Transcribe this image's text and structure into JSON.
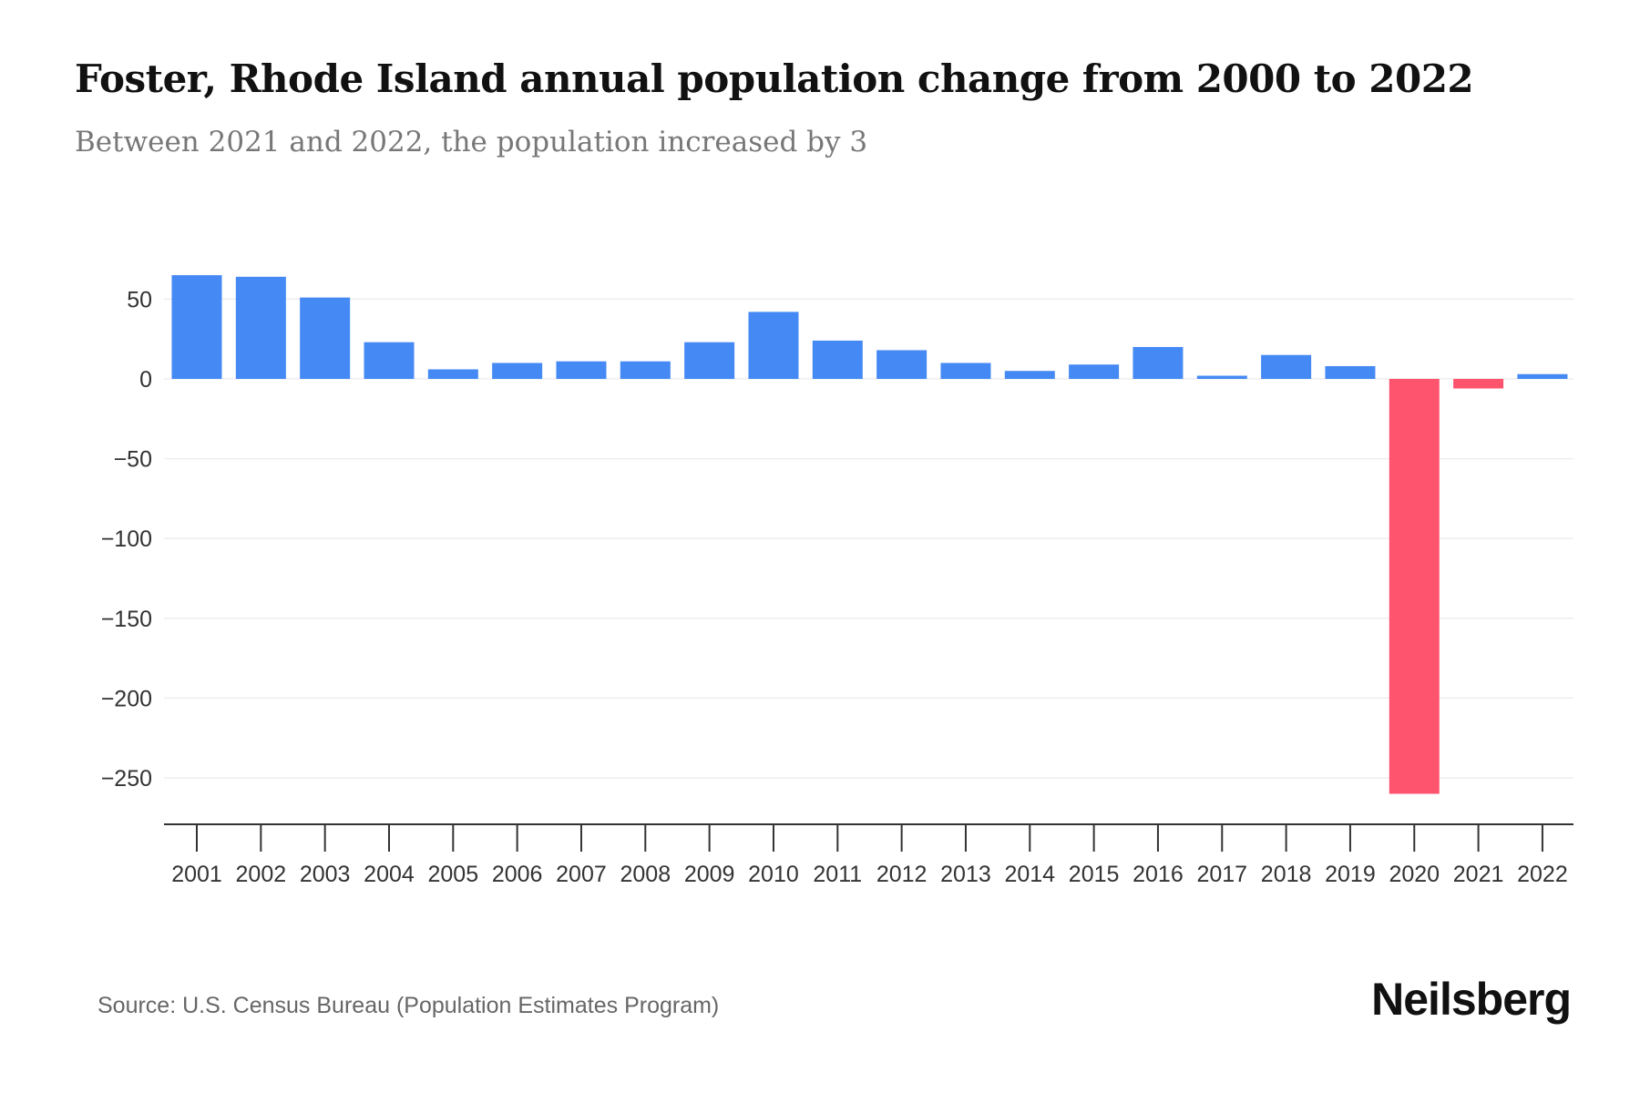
{
  "title": "Foster, Rhode Island annual population change from 2000 to 2022",
  "subtitle": "Between 2021 and 2022, the population increased by 3",
  "source": "Source: U.S. Census Bureau (Population Estimates Program)",
  "logo": "Neilsberg",
  "colors": {
    "positive": "#4589f5",
    "negative": "#ff546e",
    "grid": "#eeeeee",
    "axis": "#333333"
  },
  "chart_data": {
    "type": "bar",
    "title": "Foster, Rhode Island annual population change from 2000 to 2022",
    "xlabel": "",
    "ylabel": "",
    "categories": [
      "2001",
      "2002",
      "2003",
      "2004",
      "2005",
      "2006",
      "2007",
      "2008",
      "2009",
      "2010",
      "2011",
      "2012",
      "2013",
      "2014",
      "2015",
      "2016",
      "2017",
      "2018",
      "2019",
      "2020",
      "2021",
      "2022"
    ],
    "values": [
      65,
      64,
      51,
      23,
      6,
      10,
      11,
      11,
      23,
      42,
      24,
      18,
      10,
      5,
      9,
      20,
      2,
      15,
      8,
      -260,
      -6,
      3
    ],
    "yticks": [
      50,
      0,
      -50,
      -100,
      -150,
      -200,
      -250
    ],
    "ytick_labels": [
      "50",
      "0",
      "−50",
      "−100",
      "−150",
      "−200",
      "−250"
    ],
    "ylim": [
      -285,
      70
    ],
    "grid": true,
    "legend": "none"
  }
}
